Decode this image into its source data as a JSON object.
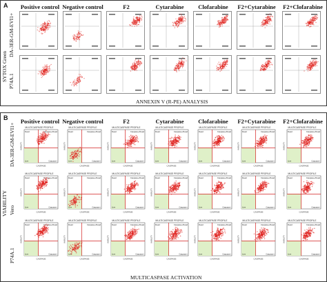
{
  "panelA": {
    "letter": "A",
    "columns": [
      "Positive control",
      "Negative control",
      "F2",
      "Cytarabine",
      "Clofarabine",
      "F2+Cytarabine",
      "F2+Clofarabine"
    ],
    "rows": [
      "DA-3ER-GM-EVI1+",
      "P74A.1"
    ],
    "y_axis_title": "SYTOX Green",
    "x_axis_title": "ANNEXIN V (R-PE) ANALYSIS"
  },
  "panelB": {
    "letter": "B",
    "columns": [
      "Positive control",
      "Negative control",
      "F2",
      "Cytarabine",
      "Clofarabine",
      "F2+Cytarabine",
      "F2+Clofarabine"
    ],
    "rows": [
      "DA-3ER-GM-EVI1+",
      "Vero",
      "P74A.1"
    ],
    "y_axis_title": "VIABILITY",
    "x_axis_title": "MULTICASPASE ACTIVATION",
    "plot_title": "MULTICASPASE PROFILE",
    "plot_xlabel": "CASPASE",
    "plot_ylabel": "VIABILITY",
    "quadrant_labels": {
      "top_left": "Dead",
      "top_right": "Caspase+/Dead",
      "bottom_left": "Live",
      "bottom_right": "Caspase+"
    }
  },
  "colors": {
    "dots": "#e0201c",
    "gate": "#d42020",
    "live_zone": "#dff0c8",
    "border": "#333333"
  }
}
